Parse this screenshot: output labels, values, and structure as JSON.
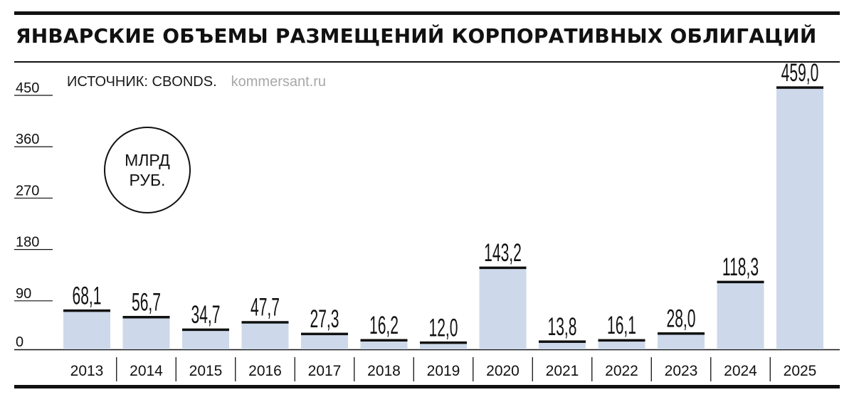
{
  "title": "ЯНВАРСКИЕ ОБЪЕМЫ РАЗМЕЩЕНИЙ КОРПОРАТИВНЫХ ОБЛИГАЦИЙ",
  "source": "ИСТОЧНИК: CBONDS.",
  "site": "kommersant.ru",
  "unit_line1": "МЛРД",
  "unit_line2": "РУБ.",
  "colors": {
    "bar": "#cdd9ea",
    "cap": "#111111",
    "text": "#111111"
  },
  "chart_data": {
    "type": "bar",
    "categories": [
      "2013",
      "2014",
      "2015",
      "2016",
      "2017",
      "2018",
      "2019",
      "2020",
      "2021",
      "2022",
      "2023",
      "2024",
      "2025"
    ],
    "values": [
      68.1,
      56.7,
      34.7,
      47.7,
      27.3,
      16.2,
      12.0,
      143.2,
      13.8,
      16.1,
      28.0,
      118.3,
      459.0
    ],
    "value_labels": [
      "68,1",
      "56,7",
      "34,7",
      "47,7",
      "27,3",
      "16,2",
      "12,0",
      "143,2",
      "13,8",
      "16,1",
      "28,0",
      "118,3",
      "459,0"
    ],
    "yticks": [
      "0",
      "90",
      "180",
      "270",
      "360",
      "450"
    ],
    "ytick_values": [
      0,
      90,
      180,
      270,
      360,
      450
    ],
    "ylim": [
      0,
      460
    ],
    "grid": false
  }
}
